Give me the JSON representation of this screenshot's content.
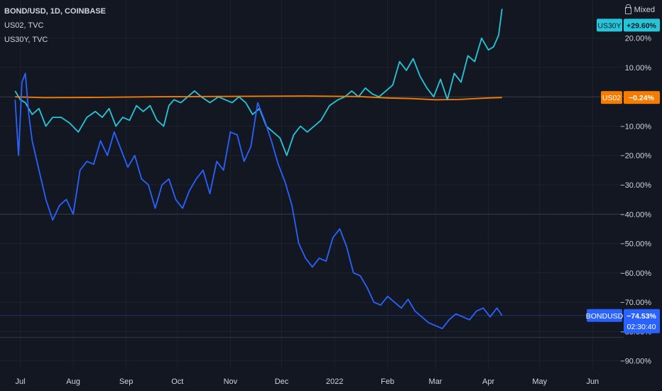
{
  "header": {
    "main_symbol": "BOND/USD, 1D, COINBASE",
    "comparisons": [
      "US02, TVC",
      "US30Y, TVC"
    ],
    "scale_mode": "Mixed"
  },
  "colors": {
    "background": "#131722",
    "grid": "#1e222d",
    "text": "#d1d4dc",
    "us30y": "#26c6da",
    "us02": "#f57c00",
    "bondusd": "#2962ff"
  },
  "price_tags": [
    {
      "label": "US30Y",
      "value": "+29.60%",
      "color": "#26c6da",
      "text_color": "#131722"
    },
    {
      "label": "US02",
      "value": "−0.24%",
      "color": "#f57c00",
      "text_color": "#ffffff"
    },
    {
      "label": "BONDUSD",
      "value": "−74.53%",
      "sub": "02:30:40",
      "color": "#2962ff",
      "text_color": "#ffffff"
    }
  ],
  "chart_data": {
    "type": "line",
    "y_unit": "%",
    "ylim": [
      -93,
      33
    ],
    "xlim": [
      "2021-06-15",
      "2022-06-15"
    ],
    "grid": true,
    "y_ticks": [
      "20.00%",
      "10.00%",
      "−10.00%",
      "−20.00%",
      "−30.00%",
      "−40.00%",
      "−50.00%",
      "−60.00%",
      "−70.00%",
      "−80.00%",
      "−90.00%"
    ],
    "y_tick_values": [
      20,
      10,
      -10,
      -20,
      -30,
      -40,
      -50,
      -60,
      -70,
      -80,
      -90
    ],
    "x_ticks": [
      "Jul",
      "Aug",
      "Sep",
      "Oct",
      "Nov",
      "Dec",
      "2022",
      "Feb",
      "Mar",
      "Apr",
      "May",
      "Jun"
    ],
    "x_tick_dates": [
      "2021-07-01",
      "2021-08-01",
      "2021-09-01",
      "2021-10-01",
      "2021-11-01",
      "2021-12-01",
      "2022-01-01",
      "2022-02-01",
      "2022-03-01",
      "2022-04-01",
      "2022-05-01",
      "2022-06-01"
    ],
    "series": [
      {
        "name": "US30Y",
        "color": "#26c6da",
        "dates": [
          "2021-06-28",
          "2021-07-01",
          "2021-07-04",
          "2021-07-08",
          "2021-07-12",
          "2021-07-16",
          "2021-07-20",
          "2021-07-25",
          "2021-07-30",
          "2021-08-04",
          "2021-08-09",
          "2021-08-14",
          "2021-08-18",
          "2021-08-22",
          "2021-08-26",
          "2021-08-30",
          "2021-09-03",
          "2021-09-07",
          "2021-09-11",
          "2021-09-15",
          "2021-09-19",
          "2021-09-23",
          "2021-09-26",
          "2021-09-29",
          "2021-10-03",
          "2021-10-07",
          "2021-10-11",
          "2021-10-15",
          "2021-10-20",
          "2021-10-25",
          "2021-10-29",
          "2021-11-02",
          "2021-11-06",
          "2021-11-10",
          "2021-11-14",
          "2021-11-18",
          "2021-11-22",
          "2021-11-26",
          "2021-11-30",
          "2021-12-04",
          "2021-12-08",
          "2021-12-12",
          "2021-12-16",
          "2021-12-20",
          "2021-12-24",
          "2021-12-29",
          "2022-01-03",
          "2022-01-07",
          "2022-01-11",
          "2022-01-15",
          "2022-01-19",
          "2022-01-23",
          "2022-01-27",
          "2022-01-31",
          "2022-02-04",
          "2022-02-08",
          "2022-02-12",
          "2022-02-16",
          "2022-02-20",
          "2022-02-24",
          "2022-02-28",
          "2022-03-04",
          "2022-03-08",
          "2022-03-12",
          "2022-03-16",
          "2022-03-20",
          "2022-03-24",
          "2022-03-28",
          "2022-04-01",
          "2022-04-04",
          "2022-04-07",
          "2022-04-09"
        ],
        "values": [
          2,
          -1,
          -2,
          -6,
          -4,
          -10,
          -7,
          -7,
          -9,
          -12,
          -7,
          -5,
          -7,
          -4,
          -10,
          -7,
          -8,
          -3,
          -5,
          -3,
          -8,
          -10,
          -3,
          -1,
          -2,
          0,
          2,
          0,
          -2,
          0,
          -1,
          -2,
          0,
          -2,
          -6,
          -4,
          -10,
          -12,
          -14,
          -20,
          -13,
          -10,
          -12,
          -10,
          -8,
          -3,
          -1,
          0,
          2,
          0,
          3,
          1,
          0,
          2,
          4,
          12,
          9,
          13,
          7,
          3,
          0,
          6,
          -1,
          8,
          5,
          14,
          12,
          20,
          16,
          17,
          21,
          30
        ]
      },
      {
        "name": "US02",
        "color": "#f57c00",
        "dates": [
          "2021-06-28",
          "2021-07-15",
          "2021-08-15",
          "2021-09-15",
          "2021-10-15",
          "2021-11-15",
          "2021-12-15",
          "2022-01-15",
          "2022-02-01",
          "2022-02-15",
          "2022-03-01",
          "2022-03-15",
          "2022-04-01",
          "2022-04-09"
        ],
        "values": [
          0,
          -0.3,
          -0.2,
          0,
          0.1,
          0.2,
          0.3,
          0.1,
          -0.4,
          -0.6,
          -1.0,
          -0.9,
          -0.4,
          -0.24
        ]
      },
      {
        "name": "BONDUSD",
        "color": "#2962ff",
        "dates": [
          "2021-06-28",
          "2021-06-30",
          "2021-07-02",
          "2021-07-04",
          "2021-07-06",
          "2021-07-08",
          "2021-07-12",
          "2021-07-16",
          "2021-07-20",
          "2021-07-24",
          "2021-07-28",
          "2021-08-01",
          "2021-08-05",
          "2021-08-09",
          "2021-08-13",
          "2021-08-17",
          "2021-08-21",
          "2021-08-25",
          "2021-08-29",
          "2021-09-02",
          "2021-09-06",
          "2021-09-10",
          "2021-09-14",
          "2021-09-18",
          "2021-09-22",
          "2021-09-26",
          "2021-09-30",
          "2021-10-04",
          "2021-10-08",
          "2021-10-12",
          "2021-10-16",
          "2021-10-20",
          "2021-10-24",
          "2021-10-28",
          "2021-11-01",
          "2021-11-05",
          "2021-11-09",
          "2021-11-13",
          "2021-11-17",
          "2021-11-21",
          "2021-11-25",
          "2021-11-29",
          "2021-12-03",
          "2021-12-07",
          "2021-12-11",
          "2021-12-15",
          "2021-12-19",
          "2021-12-23",
          "2021-12-27",
          "2021-12-31",
          "2022-01-04",
          "2022-01-08",
          "2022-01-12",
          "2022-01-16",
          "2022-01-20",
          "2022-01-24",
          "2022-01-28",
          "2022-02-01",
          "2022-02-05",
          "2022-02-09",
          "2022-02-13",
          "2022-02-17",
          "2022-02-21",
          "2022-02-25",
          "2022-03-01",
          "2022-03-05",
          "2022-03-09",
          "2022-03-13",
          "2022-03-17",
          "2022-03-21",
          "2022-03-25",
          "2022-03-29",
          "2022-04-02",
          "2022-04-06",
          "2022-04-09"
        ],
        "values": [
          -1,
          -20,
          5,
          8,
          -6,
          -15,
          -25,
          -35,
          -42,
          -37,
          -35,
          -40,
          -25,
          -22,
          -23,
          -15,
          -20,
          -12,
          -18,
          -24,
          -20,
          -28,
          -30,
          -38,
          -30,
          -28,
          -35,
          -38,
          -32,
          -28,
          -25,
          -33,
          -22,
          -25,
          -12,
          -13,
          -22,
          -17,
          -2,
          -8,
          -15,
          -23,
          -29,
          -37,
          -50,
          -55,
          -58,
          -55,
          -56,
          -48,
          -45,
          -51,
          -60,
          -61,
          -65,
          -70,
          -71,
          -68,
          -70,
          -72,
          -69,
          -73,
          -75,
          -77,
          -78,
          -79,
          -76,
          -74,
          -75,
          -76,
          -73,
          -72,
          -75,
          -72,
          -74.53
        ]
      }
    ]
  }
}
